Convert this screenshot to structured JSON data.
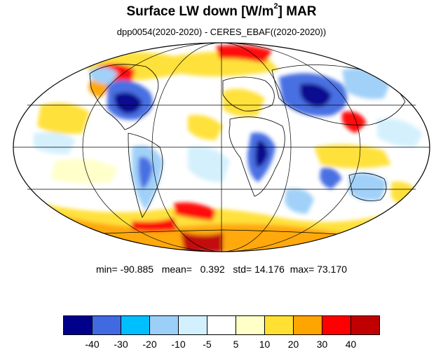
{
  "title": {
    "main": "Surface LW down [W/m",
    "sup": "2",
    "tail": "]  MAR"
  },
  "subtitle": "dpp0054(2020-2020) - CERES_EBAF((2020-2020))",
  "stats": {
    "min_label": "min=",
    "min": "-90.885",
    "mean_label": "mean=",
    "mean": "0.392",
    "std_label": "std=",
    "std": "14.176",
    "max_label": "max=",
    "max": "73.170"
  },
  "colorbar": {
    "colors": [
      "#00008b",
      "#4169e1",
      "#00bfff",
      "#9ccff8",
      "#d2f0fd",
      "#ffffff",
      "#ffffc8",
      "#ffe033",
      "#ffa500",
      "#ff0000",
      "#c00000"
    ],
    "tick_labels": [
      "-40",
      "-30",
      "-20",
      "-10",
      "-5",
      "5",
      "10",
      "20",
      "30",
      "40"
    ]
  },
  "map": {
    "projection": "Mollweide",
    "graticule": true,
    "coastlines": true
  }
}
